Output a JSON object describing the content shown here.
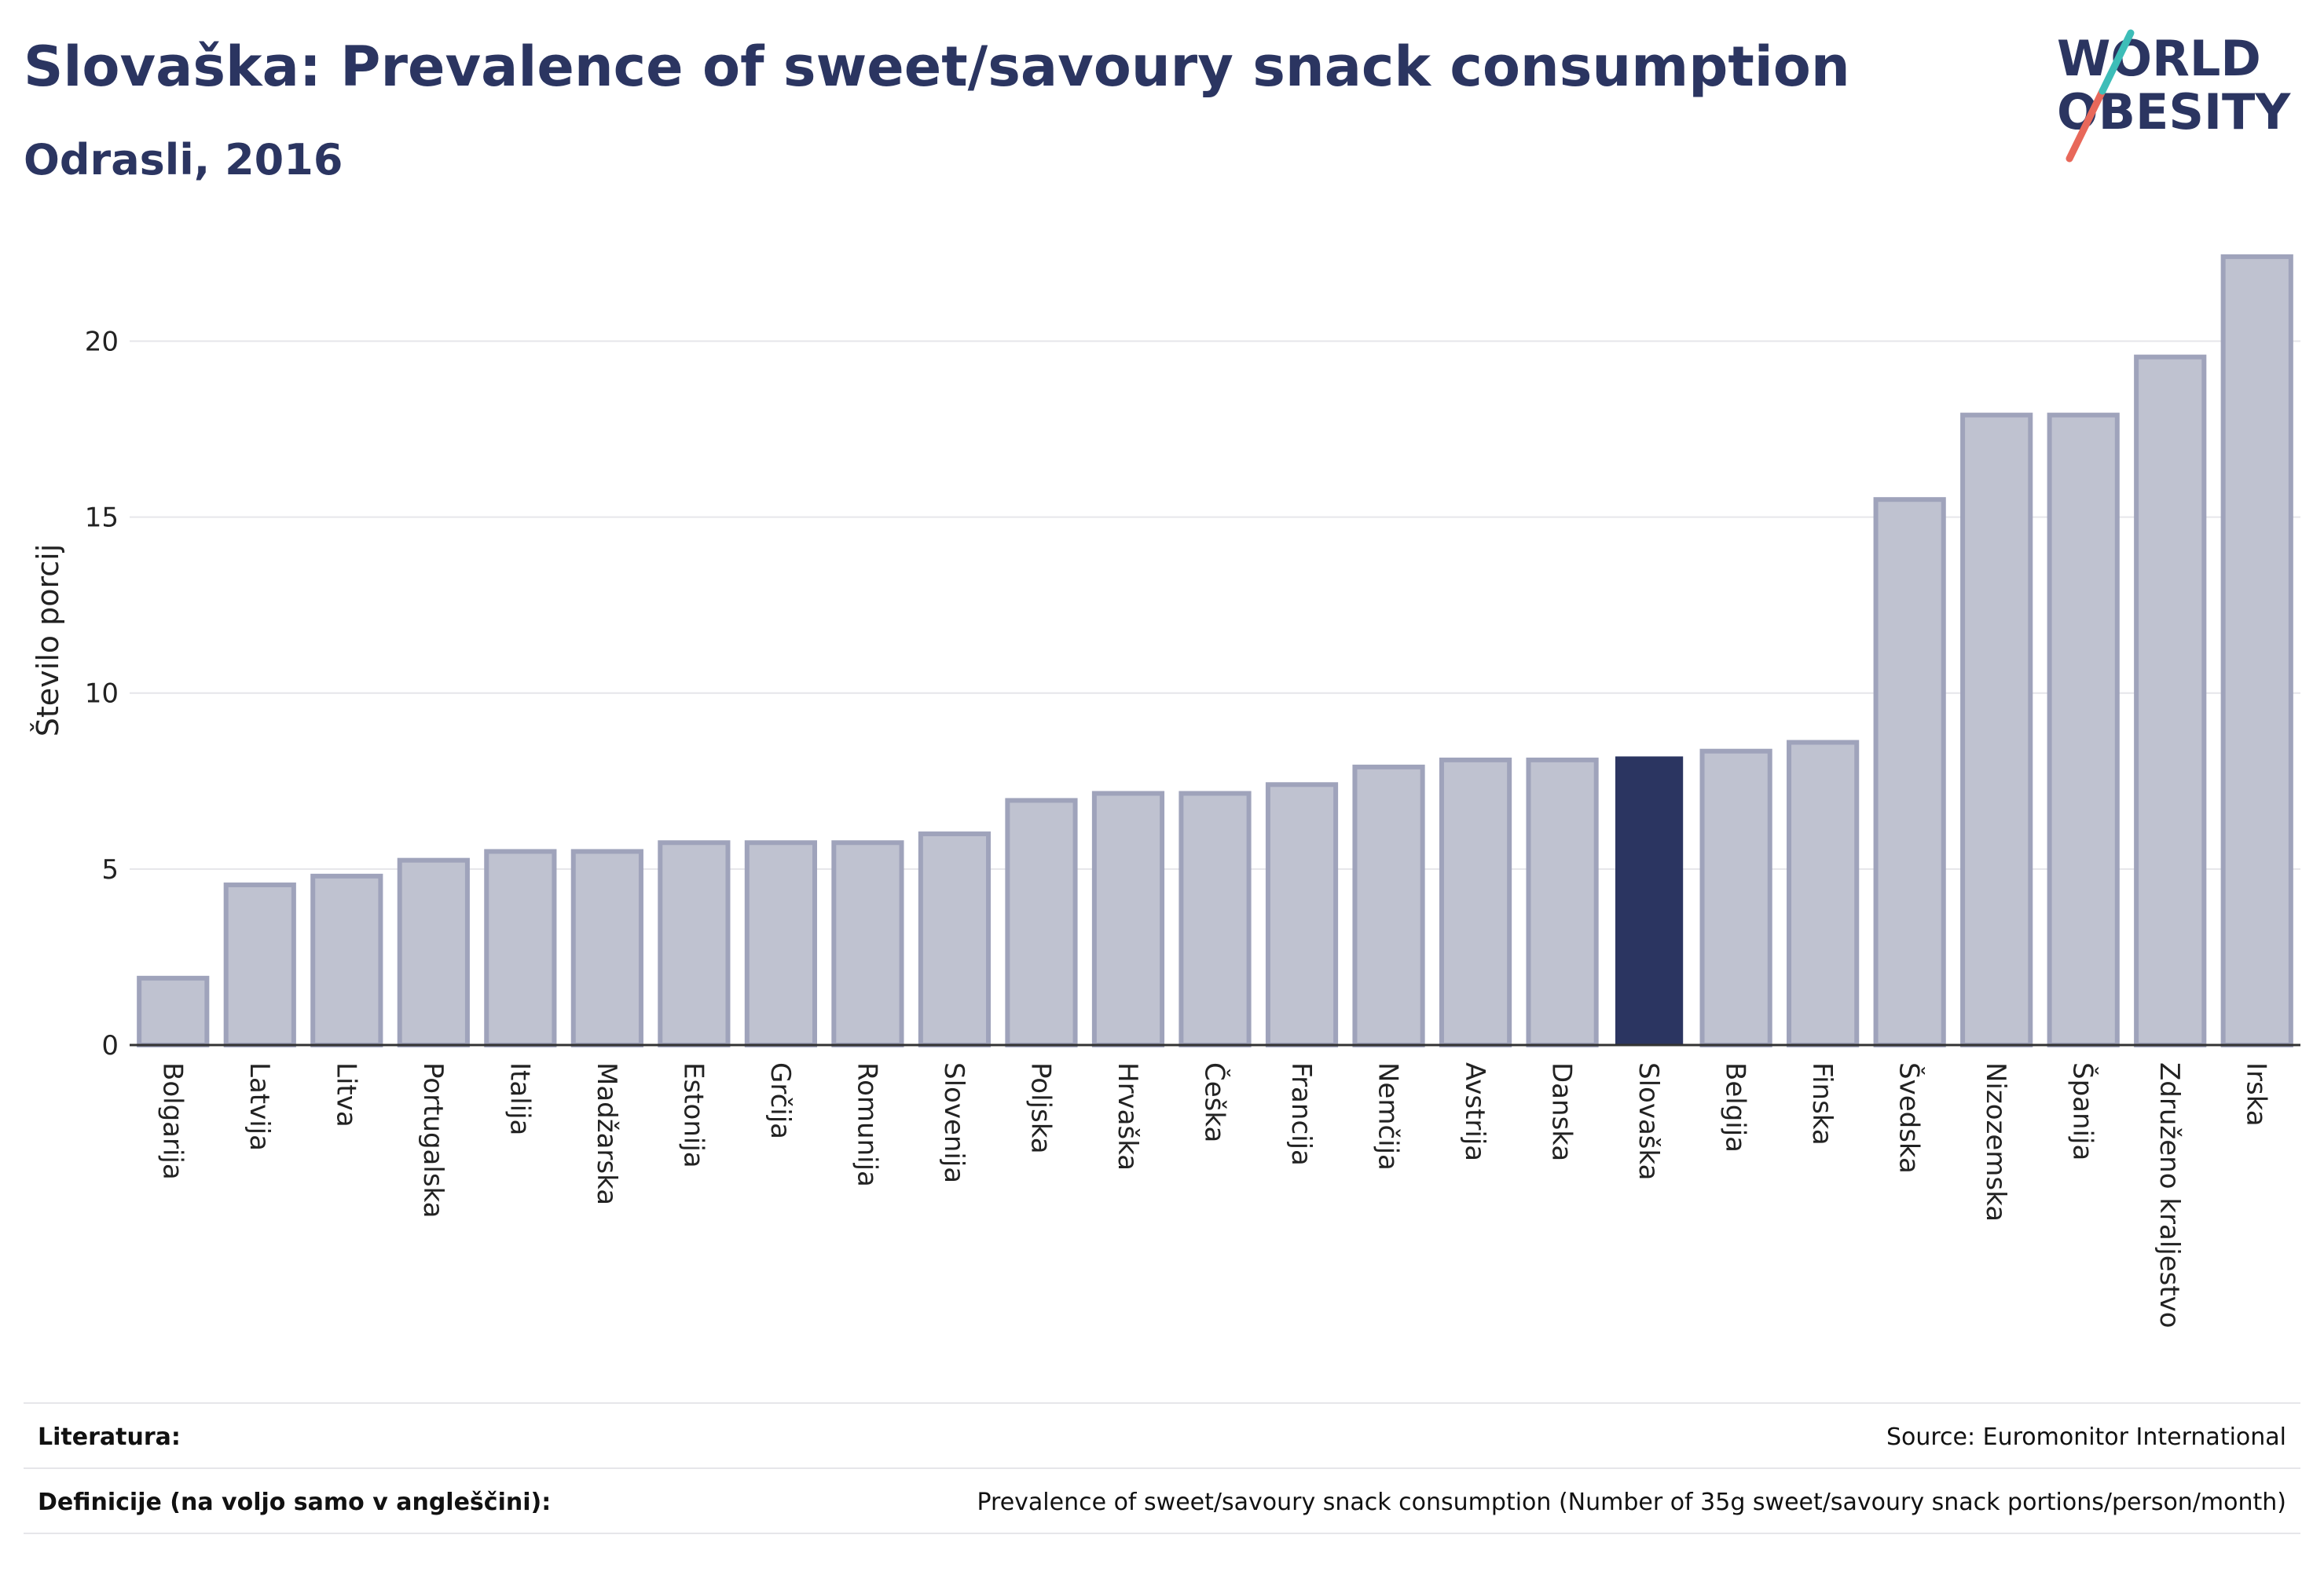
{
  "header": {
    "title": "Slovaška: Prevalence of sweet/savoury snack consumption",
    "subtitle": "Odrasli, 2016"
  },
  "logo": {
    "line1": "WORLD",
    "line2": "OBESITY",
    "slash_colors": [
      "#e8685a",
      "#3dbdb8"
    ]
  },
  "colors": {
    "bar": "#bfc2d0",
    "bar_stroke": "#9fa3bb",
    "highlight": "#2b3561",
    "grid": "#e6e6ea",
    "axis": "#333333"
  },
  "chart_data": {
    "type": "bar",
    "ylabel": "Število porcij",
    "ylim": [
      0,
      23
    ],
    "yticks": [
      0,
      5,
      10,
      15,
      20
    ],
    "grid": true,
    "highlight": "Slovaška",
    "categories": [
      "Bolgarija",
      "Latvija",
      "Litva",
      "Portugalska",
      "Italija",
      "Madžarska",
      "Estonija",
      "Grčija",
      "Romunija",
      "Slovenija",
      "Poljska",
      "Hrvaška",
      "Češka",
      "Francija",
      "Nemčija",
      "Avstrija",
      "Danska",
      "Slovaška",
      "Belgija",
      "Finska",
      "Švedska",
      "Nizozemska",
      "Španija",
      "Združeno kraljestvo",
      "Irska"
    ],
    "values": [
      1.9,
      4.55,
      4.8,
      5.25,
      5.5,
      5.5,
      5.75,
      5.75,
      5.75,
      6.0,
      6.95,
      7.15,
      7.15,
      7.4,
      7.9,
      8.1,
      8.1,
      8.2,
      8.35,
      8.6,
      15.5,
      17.9,
      17.9,
      19.55,
      22.4
    ]
  },
  "footer": {
    "references_label": "Literatura:",
    "references_value": "Source: Euromonitor International",
    "definitions_label": "Definicije (na voljo samo v angleščini):",
    "definitions_value": "Prevalence of sweet/savoury snack consumption (Number of 35g sweet/savoury snack portions/person/month)"
  }
}
